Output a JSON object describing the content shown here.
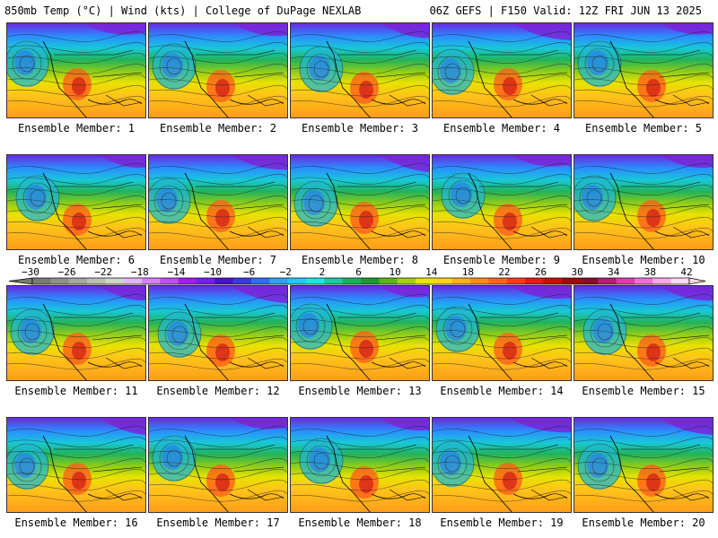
{
  "header": {
    "left": "850mb Temp (°C) | Wind (kts) | College of DuPage NEXLAB",
    "right": "06Z GEFS | F150 Valid: 12Z FRI JUN 13 2025"
  },
  "members": [
    "Ensemble Member: 1",
    "Ensemble Member: 2",
    "Ensemble Member: 3",
    "Ensemble Member: 4",
    "Ensemble Member: 5",
    "Ensemble Member: 6",
    "Ensemble Member: 7",
    "Ensemble Member: 8",
    "Ensemble Member: 9",
    "Ensemble Member: 10",
    "Ensemble Member: 11",
    "Ensemble Member: 12",
    "Ensemble Member: 13",
    "Ensemble Member: 14",
    "Ensemble Member: 15",
    "Ensemble Member: 16",
    "Ensemble Member: 17",
    "Ensemble Member: 18",
    "Ensemble Member: 19",
    "Ensemble Member: 20"
  ],
  "colorbar": {
    "ticks": [
      "−30",
      "−26",
      "−22",
      "−18",
      "−14",
      "−10",
      "−6",
      "−2",
      "2",
      "6",
      "10",
      "14",
      "18",
      "22",
      "26",
      "30",
      "34",
      "38",
      "42"
    ],
    "colors": [
      "#7a7a7a",
      "#8f8f8f",
      "#a6a6a6",
      "#bdbdbd",
      "#d2d2d2",
      "#e6b3ff",
      "#d580ff",
      "#c04dff",
      "#a21aff",
      "#7a1aff",
      "#4b0fd6",
      "#3a38e8",
      "#2f6cff",
      "#2fa0ff",
      "#20c8ff",
      "#1ee6e6",
      "#19c9a8",
      "#16b06a",
      "#1c9a2f",
      "#5cb31a",
      "#a6cf12",
      "#e6e600",
      "#ffd21a",
      "#ffb01a",
      "#ff8c1a",
      "#ff661a",
      "#ff3a1a",
      "#e61a1a",
      "#c80f0f",
      "#a00a0a",
      "#8c0a2e",
      "#b41e78",
      "#dc3cb4",
      "#f06edc",
      "#f8a6ee",
      "#fcd6f8"
    ]
  }
}
